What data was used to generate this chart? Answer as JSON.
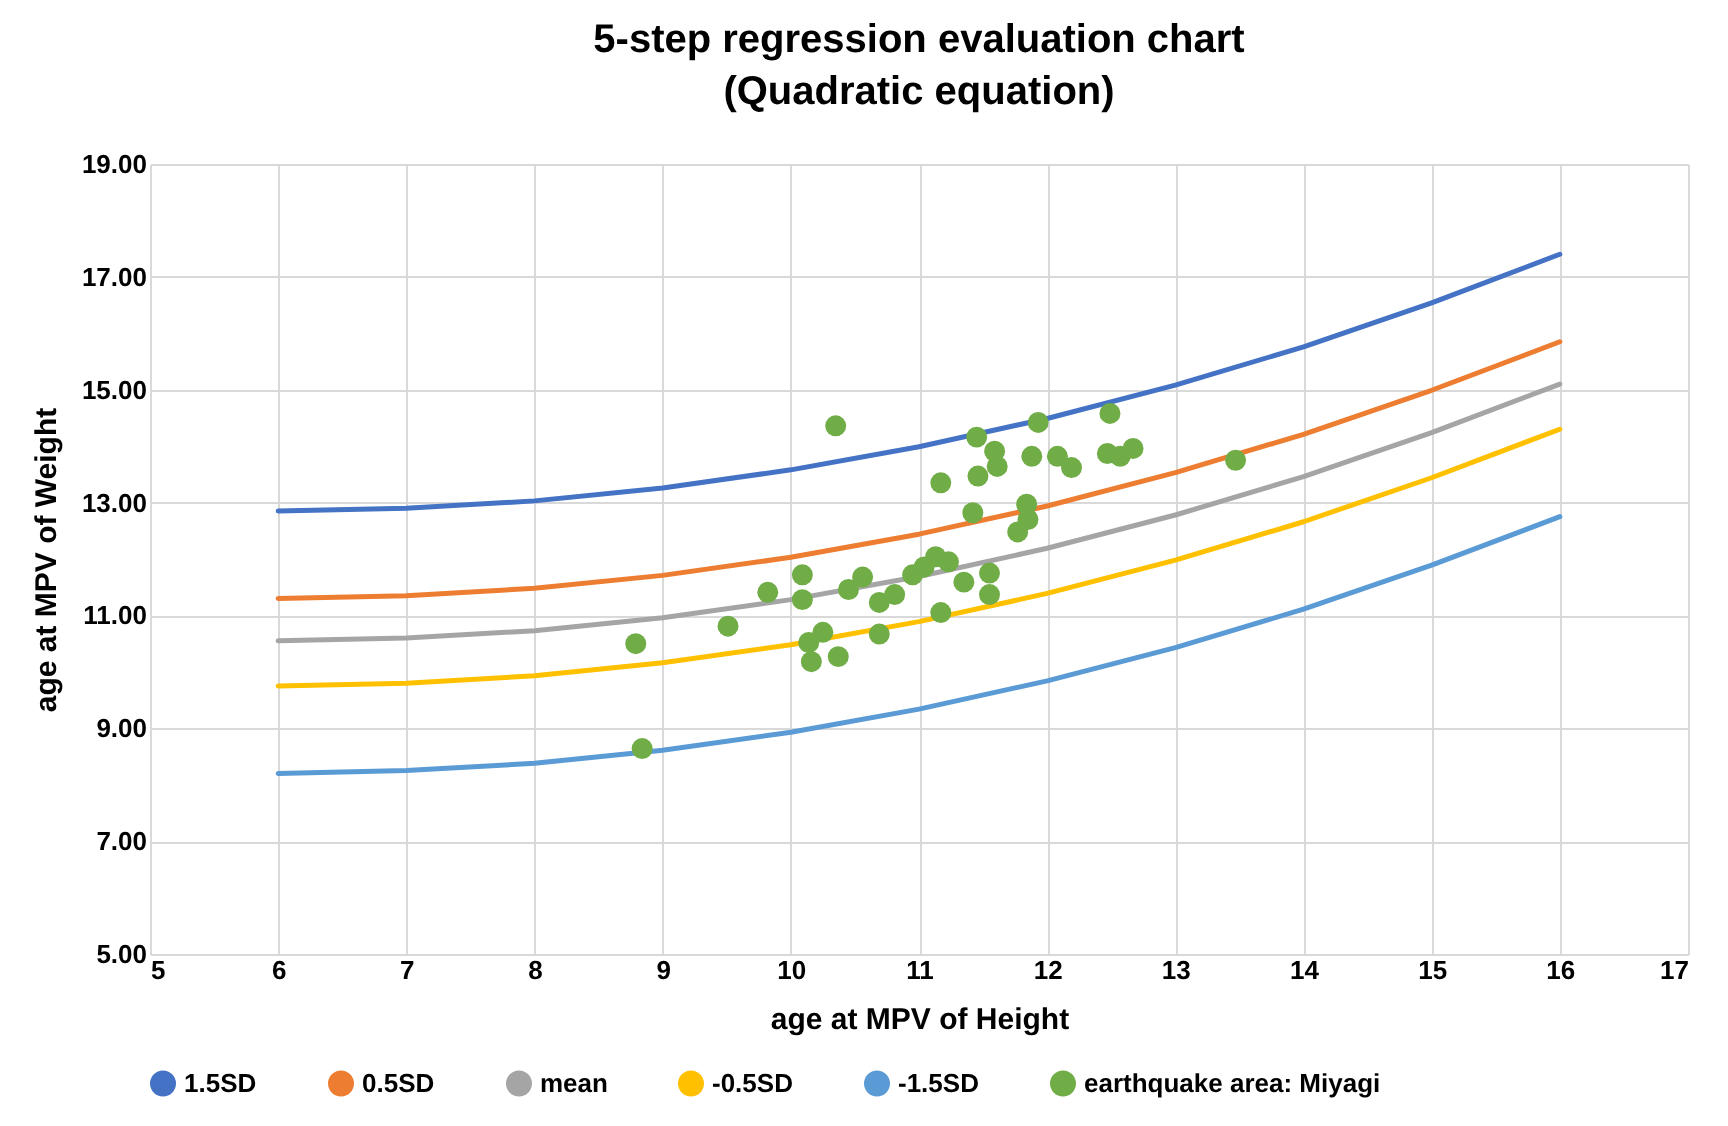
{
  "chart_data": {
    "type": "line",
    "title": "5-step regression evaluation chart",
    "subtitle": "(Quadratic equation)",
    "xlabel": "age at MPV of Height",
    "ylabel": "age at MPV of Weight",
    "xlim": [
      5,
      17
    ],
    "xticks": [
      5,
      6,
      7,
      8,
      9,
      10,
      11,
      12,
      13,
      14,
      15,
      16,
      17
    ],
    "ylim": [
      5,
      19
    ],
    "yticks": [
      {
        "value": 5,
        "label": "5.00"
      },
      {
        "value": 7,
        "label": "7.00"
      },
      {
        "value": 9,
        "label": "9.00"
      },
      {
        "value": 11,
        "label": "11.00"
      },
      {
        "value": 13,
        "label": "13.00"
      },
      {
        "value": 15,
        "label": "15.00"
      },
      {
        "value": 17,
        "label": "17.00"
      },
      {
        "value": 19,
        "label": "19.00"
      }
    ],
    "grid": true,
    "legend": "bottom",
    "line_style": "solid",
    "marker": "none",
    "series": [
      {
        "name": "1.5SD",
        "color": "#4472c4",
        "x": [
          6,
          7,
          8,
          9,
          10,
          11,
          12,
          13,
          14,
          15,
          16
        ],
        "values": [
          12.85,
          12.9,
          13.03,
          13.26,
          13.58,
          13.99,
          14.49,
          15.08,
          15.76,
          16.54,
          17.4
        ]
      },
      {
        "name": "0.5SD",
        "color": "#ed7d31",
        "x": [
          6,
          7,
          8,
          9,
          10,
          11,
          12,
          13,
          14,
          15,
          16
        ],
        "values": [
          11.3,
          11.35,
          11.48,
          11.71,
          12.03,
          12.44,
          12.94,
          13.53,
          14.21,
          14.99,
          15.85
        ]
      },
      {
        "name": "mean",
        "color": "#a5a5a5",
        "x": [
          6,
          7,
          8,
          9,
          10,
          11,
          12,
          13,
          14,
          15,
          16
        ],
        "values": [
          10.55,
          10.6,
          10.73,
          10.96,
          11.28,
          11.69,
          12.19,
          12.78,
          13.46,
          14.24,
          15.1
        ]
      },
      {
        "name": "-0.5SD",
        "color": "#ffc000",
        "x": [
          6,
          7,
          8,
          9,
          10,
          11,
          12,
          13,
          14,
          15,
          16
        ],
        "values": [
          9.75,
          9.8,
          9.93,
          10.16,
          10.48,
          10.89,
          11.39,
          11.98,
          12.66,
          13.44,
          14.3
        ]
      },
      {
        "name": "-1.5SD",
        "color": "#5b9bd5",
        "x": [
          6,
          7,
          8,
          9,
          10,
          11,
          12,
          13,
          14,
          15,
          16
        ],
        "values": [
          8.2,
          8.25,
          8.38,
          8.61,
          8.93,
          9.34,
          9.84,
          10.43,
          11.11,
          11.89,
          12.75
        ]
      },
      {
        "name": "earthquake area: Miyagi",
        "type": "scatter",
        "marker": "circle",
        "color": "#70ad47",
        "x": [
          8.79,
          8.84,
          9.51,
          9.82,
          10.09,
          10.09,
          10.14,
          10.16,
          10.25,
          10.37,
          10.35,
          10.45,
          10.56,
          10.69,
          10.69,
          10.81,
          10.95,
          11.04,
          11.13,
          11.23,
          11.17,
          11.17,
          11.35,
          11.42,
          11.45,
          11.46,
          11.55,
          11.55,
          11.59,
          11.61,
          11.77,
          11.84,
          11.85,
          11.88,
          11.93,
          12.08,
          12.19,
          12.49,
          12.47,
          12.57,
          12.67,
          13.47
        ],
        "values": [
          10.5,
          8.64,
          10.81,
          11.41,
          11.72,
          11.28,
          10.52,
          10.18,
          10.7,
          10.27,
          14.36,
          11.46,
          11.68,
          10.67,
          11.23,
          11.37,
          11.72,
          11.86,
          12.04,
          11.95,
          11.05,
          13.35,
          11.59,
          12.82,
          14.16,
          13.47,
          11.75,
          11.37,
          13.91,
          13.64,
          12.48,
          12.97,
          12.7,
          13.82,
          14.42,
          13.82,
          13.62,
          14.58,
          13.87,
          13.82,
          13.96,
          13.75
        ]
      }
    ]
  }
}
